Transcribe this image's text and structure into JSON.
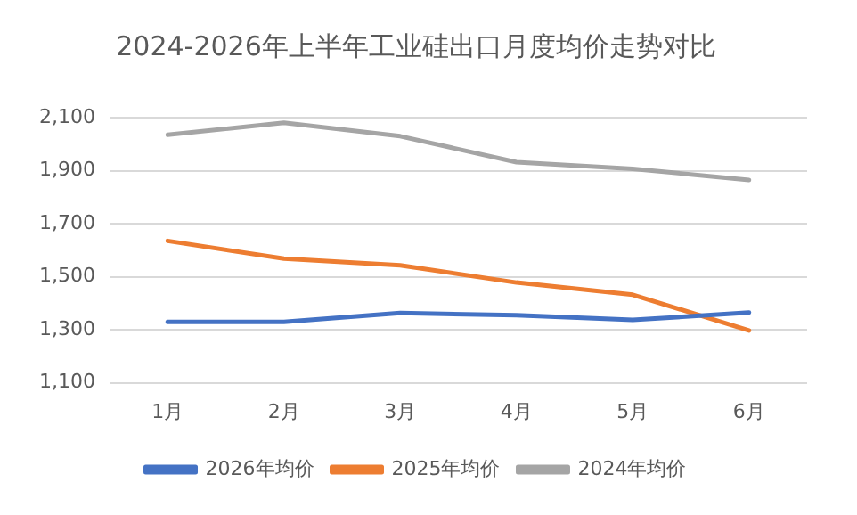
{
  "chart_data": {
    "type": "line",
    "title": "2024-2026年上半年工业硅出口月度均价走势对比",
    "categories": [
      "1月",
      "2月",
      "3月",
      "4月",
      "5月",
      "6月"
    ],
    "series": [
      {
        "name": "2026年均价",
        "color": "#4472c4",
        "values": [
          1330,
          1330,
          1363,
          1355,
          1337,
          1365
        ]
      },
      {
        "name": "2025年均价",
        "color": "#ed7d31",
        "values": [
          1635,
          1568,
          1543,
          1478,
          1432,
          1297
        ]
      },
      {
        "name": "2024年均价",
        "color": "#a5a5a5",
        "values": [
          2035,
          2081,
          2030,
          1932,
          1907,
          1865
        ]
      }
    ],
    "ylim": [
      1100,
      2100
    ],
    "yticks": [
      {
        "value": 1100,
        "label": "1,100"
      },
      {
        "value": 1300,
        "label": "1,300"
      },
      {
        "value": 1500,
        "label": "1,500"
      },
      {
        "value": 1700,
        "label": "1,700"
      },
      {
        "value": 1900,
        "label": "1,900"
      },
      {
        "value": 2100,
        "label": "2,100"
      }
    ],
    "grid": "y",
    "legend": "bottom",
    "marker": "none",
    "line_style": "solid"
  }
}
